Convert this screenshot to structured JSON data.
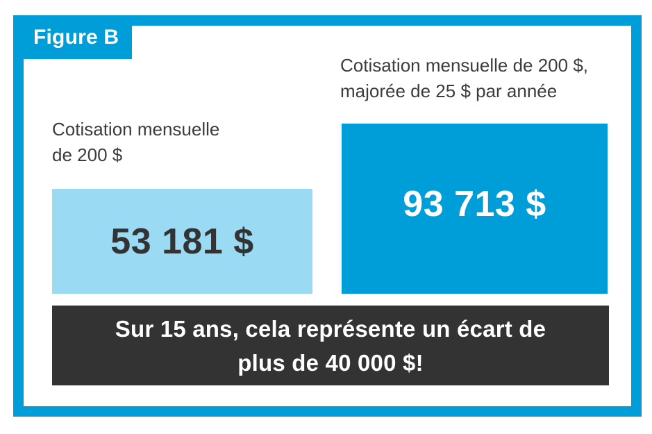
{
  "figure": {
    "tag": "Figure B"
  },
  "colors": {
    "brand_blue": "#009ED9",
    "light_blue": "#9BDAF3",
    "charcoal": "#333333",
    "text_dark": "#3C3C3B",
    "white": "#FFFFFF"
  },
  "bars": {
    "left": {
      "label_line1": "Cotisation mensuelle",
      "label_line2": "de 200 $",
      "value": "53 181 $"
    },
    "right": {
      "label_line1": "Cotisation mensuelle de 200 $,",
      "label_line2": "majorée de 25 $ par année",
      "value": "93 713 $"
    }
  },
  "footnote": {
    "line1": "Sur 15 ans, cela représente un écart de",
    "line2": "plus de 40 000 $!"
  },
  "chart_data": {
    "type": "bar",
    "categories": [
      "Cotisation mensuelle de 200 $",
      "Cotisation mensuelle de 200 $, majorée de 25 $ par année"
    ],
    "values": [
      53181,
      93713
    ],
    "value_labels": [
      "53 181 $",
      "93 713 $"
    ],
    "title": "Figure B",
    "xlabel": "",
    "ylabel": "",
    "annotation": "Sur 15 ans, cela représente un écart de plus de 40 000 $!",
    "legend": false,
    "orientation": "vertical",
    "bar_colors": [
      "#9BDAF3",
      "#009ED9"
    ]
  }
}
